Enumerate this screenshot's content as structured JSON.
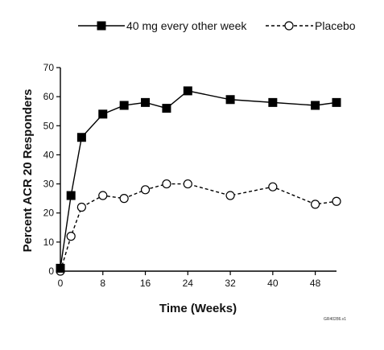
{
  "chart_data": {
    "type": "line",
    "xlabel": "Time (Weeks)",
    "ylabel": "Percent ACR 20 Responders",
    "xlim": [
      0,
      52
    ],
    "ylim": [
      0,
      70
    ],
    "xticks": [
      0,
      8,
      16,
      24,
      32,
      40,
      48
    ],
    "yticks": [
      0,
      10,
      20,
      30,
      40,
      50,
      60,
      70
    ],
    "grid": false,
    "legend": "top",
    "series": [
      {
        "name": "40 mg every other week",
        "marker": "filled-square",
        "line": "solid",
        "color": "#000000",
        "x": [
          0,
          2,
          4,
          8,
          12,
          16,
          20,
          24,
          32,
          40,
          48,
          52
        ],
        "y": [
          1,
          26,
          46,
          54,
          57,
          58,
          56,
          62,
          59,
          58,
          57,
          58
        ]
      },
      {
        "name": "Placebo",
        "marker": "open-circle",
        "line": "dashed",
        "color": "#000000",
        "x": [
          0,
          2,
          4,
          8,
          12,
          16,
          20,
          24,
          32,
          40,
          48,
          52
        ],
        "y": [
          0,
          12,
          22,
          26,
          25,
          28,
          30,
          30,
          26,
          29,
          23,
          24
        ]
      }
    ],
    "figure_code": "GR40286.v1"
  }
}
